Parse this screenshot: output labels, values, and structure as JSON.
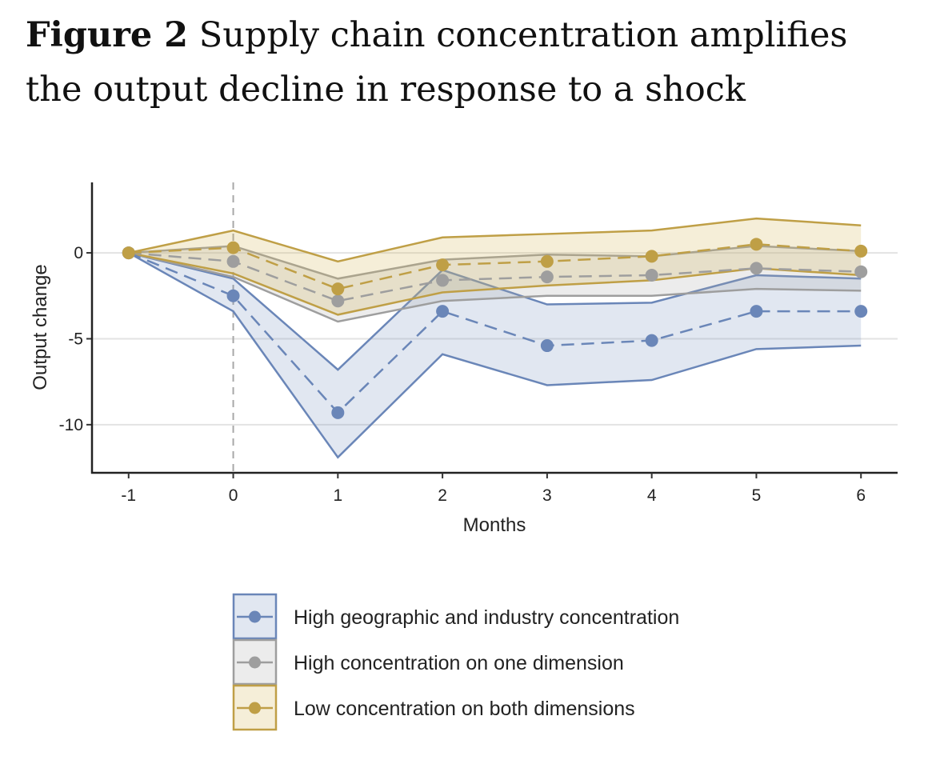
{
  "figure": {
    "label": "Figure 2",
    "caption": "Supply chain concentration amplifies the output decline in response to a shock"
  },
  "chart_data": {
    "type": "line",
    "title": "Supply chain concentration amplifies the output decline in response to a shock",
    "xlabel": "Months",
    "ylabel": "Output change",
    "x": [
      -1,
      0,
      1,
      2,
      3,
      4,
      5,
      6
    ],
    "x_ticks": [
      "-1",
      "0",
      "1",
      "2",
      "3",
      "4",
      "5",
      "6"
    ],
    "y_ticks": [
      0,
      -5,
      -10
    ],
    "y_tick_labels": [
      "0",
      "-5",
      "-10"
    ],
    "xlim": [
      -1.35,
      6.35
    ],
    "ylim": [
      -12.8,
      4.1
    ],
    "vline_x": 0,
    "grid": "horizontal",
    "legend_position": "bottom",
    "series": [
      {
        "name": "High geographic and industry concentration",
        "color": "#6a86b8",
        "band_fill": "rgba(106,134,184,0.20)",
        "values": [
          0,
          -2.5,
          -9.3,
          -3.4,
          -5.4,
          -5.1,
          -3.4,
          -3.4
        ],
        "lower": [
          0,
          -3.4,
          -11.9,
          -5.9,
          -7.7,
          -7.4,
          -5.6,
          -5.4
        ],
        "upper": [
          0,
          -1.5,
          -6.8,
          -1.0,
          -3.0,
          -2.9,
          -1.3,
          -1.5
        ]
      },
      {
        "name": "High concentration on one dimension",
        "color": "#9e9e9e",
        "band_fill": "rgba(170,170,170,0.22)",
        "values": [
          0,
          -0.5,
          -2.8,
          -1.6,
          -1.4,
          -1.3,
          -0.9,
          -1.1
        ],
        "lower": [
          0,
          -1.4,
          -4.0,
          -2.8,
          -2.5,
          -2.5,
          -2.1,
          -2.2
        ],
        "upper": [
          0,
          0.4,
          -1.5,
          -0.4,
          -0.1,
          -0.2,
          0.4,
          0.1
        ]
      },
      {
        "name": "Low concentration on both dimensions",
        "color": "#bf9f46",
        "band_fill": "rgba(212,184,94,0.24)",
        "values": [
          0,
          0.3,
          -2.1,
          -0.7,
          -0.5,
          -0.2,
          0.5,
          0.1
        ],
        "lower": [
          0,
          -1.2,
          -3.6,
          -2.3,
          -1.9,
          -1.6,
          -0.9,
          -1.3
        ],
        "upper": [
          0,
          1.3,
          -0.5,
          0.9,
          1.1,
          1.3,
          2.0,
          1.6
        ]
      }
    ]
  }
}
